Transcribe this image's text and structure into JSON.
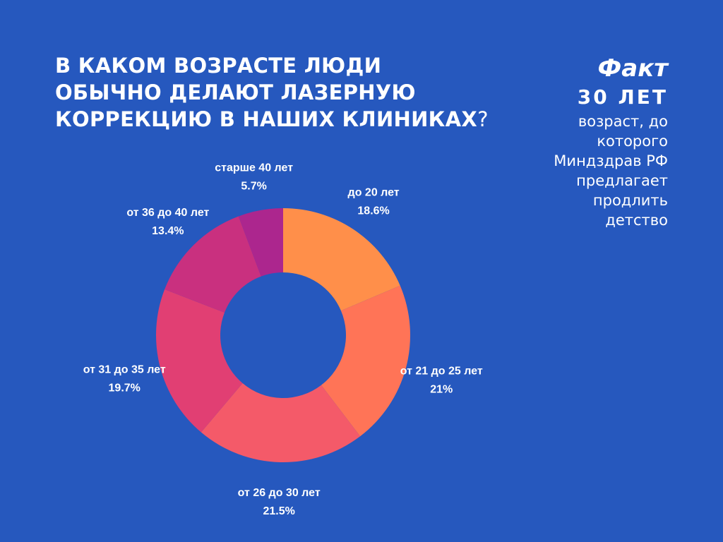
{
  "title": {
    "line1": "В КАКОМ ВОЗРАСТЕ ЛЮДИ",
    "line2": "ОБЫЧНО ДЕЛАЮТ ЛАЗЕРНУЮ",
    "line3": "КОРРЕКЦИЮ В НАШИХ КЛИНИКАХ",
    "qmark": "?"
  },
  "fact": {
    "heading": "Факт",
    "value": "30 ЛЕТ",
    "lines": [
      "возраст, до",
      "которого",
      "Миндздрав РФ",
      "предлагает",
      "продлить",
      "детство"
    ]
  },
  "colors": {
    "background": "#2658BE",
    "slices": [
      "#FF8F4A",
      "#FF7457",
      "#F45A69",
      "#E13F73",
      "#C9307F",
      "#AC268E"
    ]
  },
  "chart_data": {
    "type": "pie",
    "variant": "donut",
    "categories": [
      "до 20 лет",
      "от 21 до 25 лет",
      "от 26 до 30 лет",
      "от 31 до 35 лет",
      "от 36 до 40 лет",
      "старше 40 лет"
    ],
    "values": [
      18.6,
      21,
      21.5,
      19.7,
      13.4,
      5.7
    ],
    "value_labels": [
      "18.6%",
      "21%",
      "21.5%",
      "19.7%",
      "13.4%",
      "5.7%"
    ],
    "start": "top",
    "direction": "clockwise",
    "legend": "none"
  }
}
